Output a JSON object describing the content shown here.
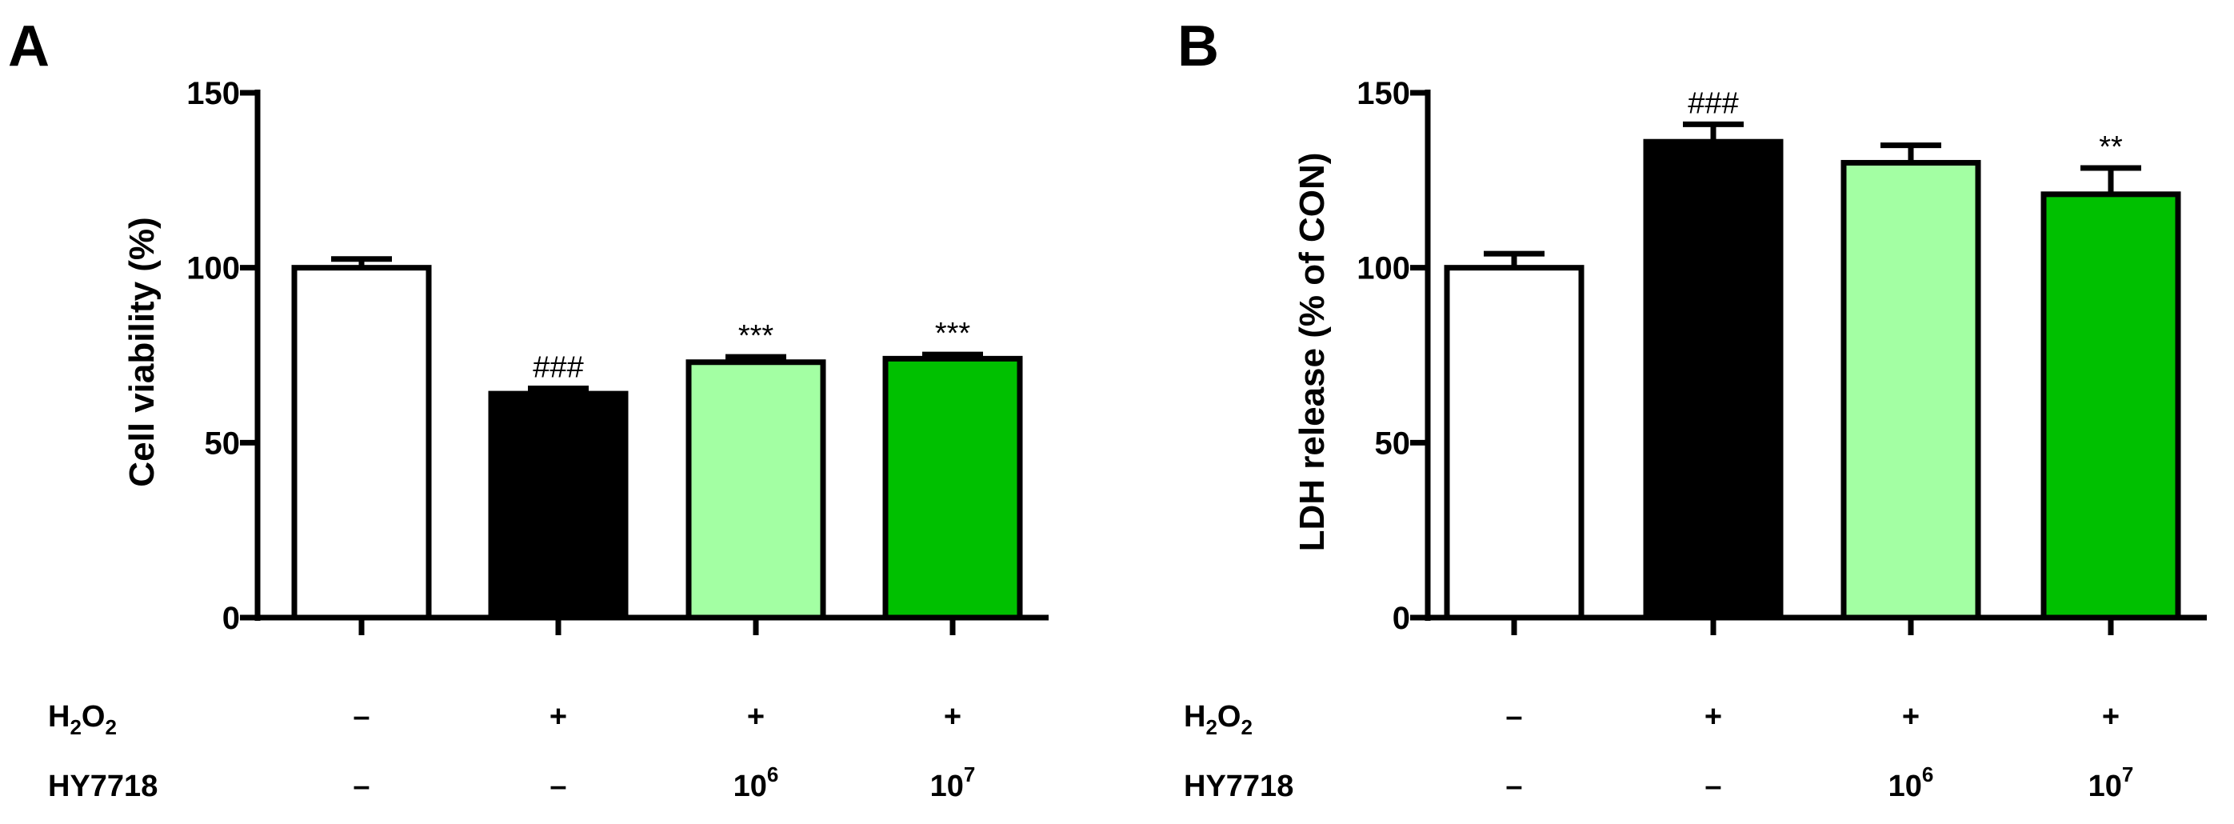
{
  "chart_data": [
    {
      "panel": "A",
      "type": "bar",
      "ylabel": "Cell viability (%)",
      "ylim": [
        0,
        150
      ],
      "yticks": [
        0,
        50,
        100,
        150
      ],
      "bars": [
        {
          "value": 100,
          "error": 2.5,
          "color": "#ffffff",
          "sig": ""
        },
        {
          "value": 64,
          "error": 1.5,
          "color": "#000000",
          "sig": "###"
        },
        {
          "value": 73,
          "error": 1.5,
          "color": "#a3ffa3",
          "sig": "***"
        },
        {
          "value": 74,
          "error": 1.2,
          "color": "#00c000",
          "sig": "***"
        }
      ],
      "conditions": {
        "h2o2_label": {
          "base": "H",
          "sub1": "2",
          "mid": "O",
          "sub2": "2"
        },
        "hy_label": "HY7718",
        "h2o2": [
          "–",
          "+",
          "+",
          "+"
        ],
        "hy": [
          {
            "base": "–",
            "exp": ""
          },
          {
            "base": "–",
            "exp": ""
          },
          {
            "base": "10",
            "exp": "6"
          },
          {
            "base": "10",
            "exp": "7"
          }
        ]
      }
    },
    {
      "panel": "B",
      "type": "bar",
      "ylabel": "LDH release (% of CON)",
      "ylim": [
        0,
        150
      ],
      "yticks": [
        0,
        50,
        100,
        150
      ],
      "bars": [
        {
          "value": 100,
          "error": 4,
          "color": "#ffffff",
          "sig": ""
        },
        {
          "value": 136,
          "error": 5,
          "color": "#000000",
          "sig": "###"
        },
        {
          "value": 130,
          "error": 5,
          "color": "#a3ffa3",
          "sig": ""
        },
        {
          "value": 121,
          "error": 7.5,
          "color": "#00c000",
          "sig": "**"
        }
      ],
      "conditions": {
        "h2o2_label": {
          "base": "H",
          "sub1": "2",
          "mid": "O",
          "sub2": "2"
        },
        "hy_label": "HY7718",
        "h2o2": [
          "–",
          "+",
          "+",
          "+"
        ],
        "hy": [
          {
            "base": "–",
            "exp": ""
          },
          {
            "base": "–",
            "exp": ""
          },
          {
            "base": "10",
            "exp": "6"
          },
          {
            "base": "10",
            "exp": "7"
          }
        ]
      }
    }
  ]
}
